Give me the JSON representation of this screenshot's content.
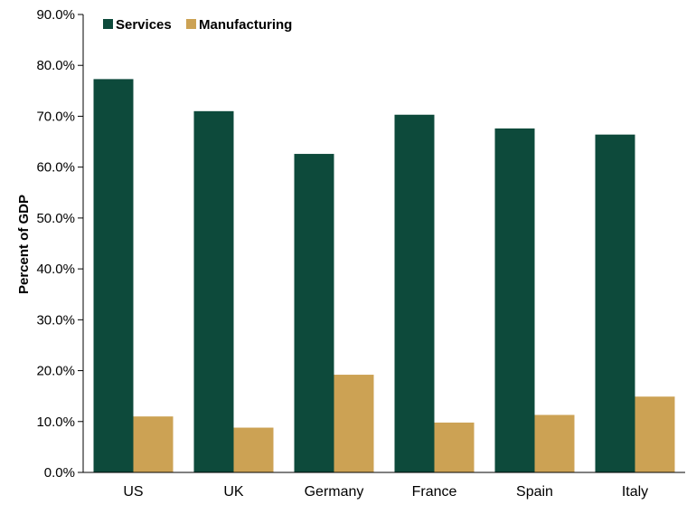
{
  "chart_data": {
    "type": "bar",
    "categories": [
      "US",
      "UK",
      "Germany",
      "France",
      "Spain",
      "Italy"
    ],
    "series": [
      {
        "name": "Services",
        "values": [
          77.3,
          71.0,
          62.6,
          70.3,
          67.6,
          66.4
        ],
        "color": "#0d4a3b"
      },
      {
        "name": "Manufacturing",
        "values": [
          11.0,
          8.8,
          19.2,
          9.8,
          11.3,
          14.9
        ],
        "color": "#cca254"
      }
    ],
    "title": "",
    "xlabel": "",
    "ylabel": "Percent of GDP",
    "ylim": [
      0,
      90
    ],
    "yticks": [
      0,
      10,
      20,
      30,
      40,
      50,
      60,
      70,
      80,
      90
    ],
    "ytick_labels": [
      "0.0%",
      "10.0%",
      "20.0%",
      "30.0%",
      "40.0%",
      "50.0%",
      "60.0%",
      "70.0%",
      "80.0%",
      "90.0%"
    ],
    "grid": false,
    "legend": "top-left"
  }
}
